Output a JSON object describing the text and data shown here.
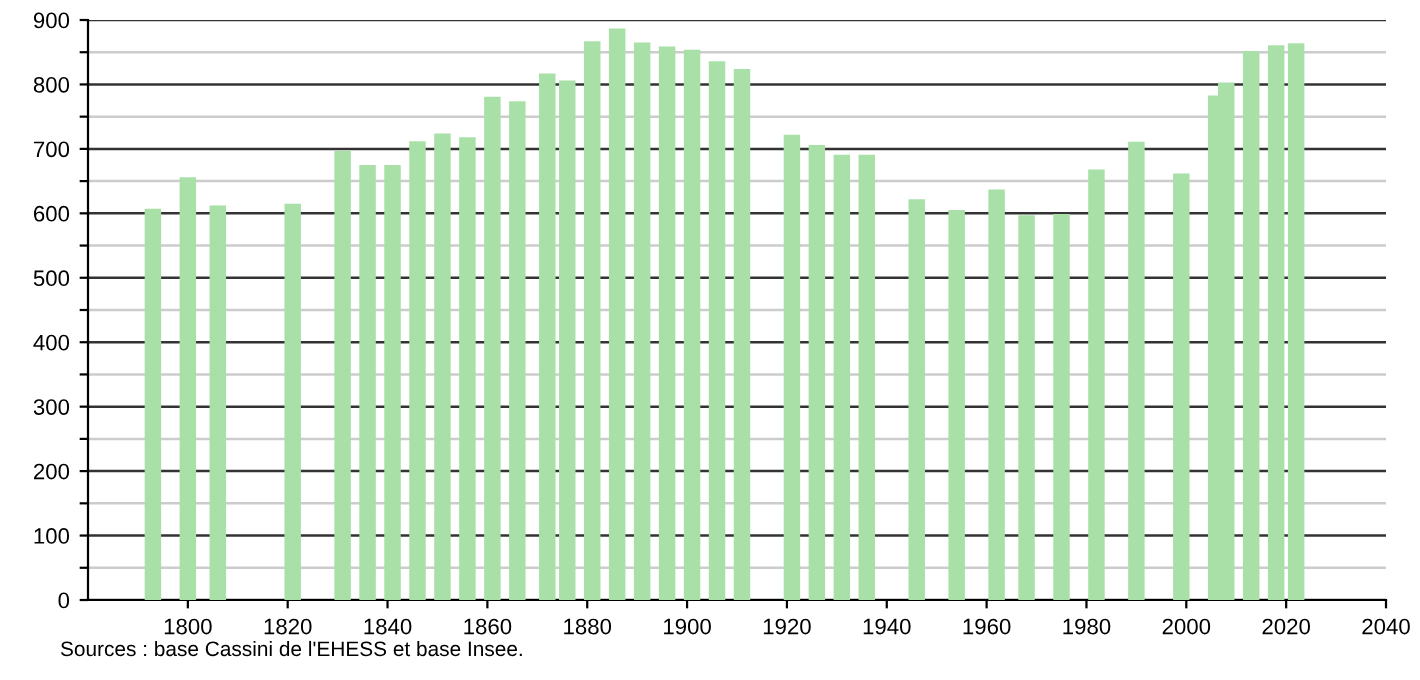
{
  "chart_data": {
    "type": "bar",
    "x": [
      1793,
      1800,
      1806,
      1821,
      1831,
      1836,
      1841,
      1846,
      1851,
      1856,
      1861,
      1866,
      1872,
      1876,
      1881,
      1886,
      1891,
      1896,
      1901,
      1906,
      1911,
      1921,
      1926,
      1931,
      1936,
      1946,
      1954,
      1962,
      1968,
      1975,
      1982,
      1990,
      1999,
      2006,
      2008,
      2013,
      2018,
      2022
    ],
    "values": [
      607,
      656,
      612,
      615,
      697,
      675,
      675,
      712,
      724,
      718,
      781,
      774,
      817,
      806,
      867,
      887,
      865,
      859,
      854,
      836,
      824,
      722,
      706,
      691,
      691,
      622,
      605,
      637,
      597,
      599,
      668,
      711,
      662,
      783,
      803,
      852,
      861,
      864
    ],
    "color": "#a8e0a8",
    "xlim": [
      1780,
      2040
    ],
    "xticks": [
      1800,
      1820,
      1840,
      1860,
      1880,
      1900,
      1920,
      1940,
      1960,
      1980,
      2000,
      2020,
      2040
    ],
    "ylim": [
      0,
      900
    ],
    "yticks": [
      0,
      {
        "value": 50,
        "label": null
      },
      100,
      {
        "value": 150,
        "label": null
      },
      200,
      {
        "value": 250,
        "label": null
      },
      300,
      {
        "value": 350,
        "label": null
      },
      400,
      {
        "value": 450,
        "label": null
      },
      500,
      {
        "value": 550,
        "label": null
      },
      600,
      {
        "value": 650,
        "label": null
      },
      700,
      {
        "value": 750,
        "label": null
      },
      800,
      {
        "value": 850,
        "label": null
      },
      900
    ],
    "grid": "y",
    "legend": false,
    "annotations": [
      "Sources : base Cassini de l'EHESS et base Insee."
    ]
  }
}
